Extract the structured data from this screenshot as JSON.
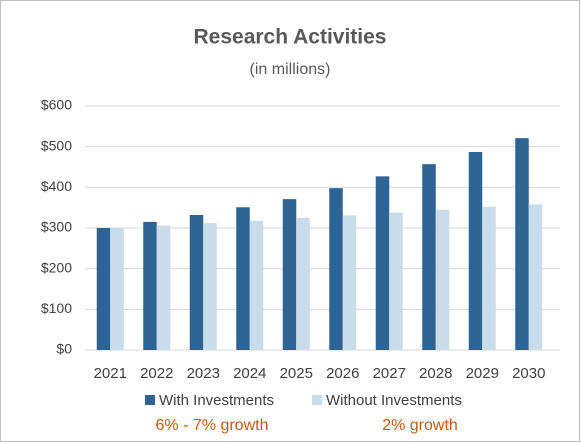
{
  "chart_data": {
    "type": "bar",
    "title": "Research Activities",
    "subtitle": "(in millions)",
    "categories": [
      "2021",
      "2022",
      "2023",
      "2024",
      "2025",
      "2026",
      "2027",
      "2028",
      "2029",
      "2030"
    ],
    "series": [
      {
        "name": "With Investments",
        "color": "#2e6494",
        "values": [
          300,
          315,
          332,
          351,
          371,
          398,
          427,
          457,
          487,
          521
        ]
      },
      {
        "name": "Without Investments",
        "color": "#c9dcea",
        "values": [
          300,
          306,
          312,
          318,
          325,
          331,
          338,
          345,
          352,
          358
        ]
      }
    ],
    "ylim": [
      0,
      600
    ],
    "yticks": [
      {
        "value": 0,
        "label": "$0"
      },
      {
        "value": 100,
        "label": "$100"
      },
      {
        "value": 200,
        "label": "$200"
      },
      {
        "value": 300,
        "label": "$300"
      },
      {
        "value": 400,
        "label": "$400"
      },
      {
        "value": 500,
        "label": "$500"
      },
      {
        "value": 600,
        "label": "$600"
      }
    ],
    "grid": true,
    "annotations": [
      "6% - 7% growth",
      "2% growth"
    ],
    "annotation_color": "#c55a11"
  }
}
